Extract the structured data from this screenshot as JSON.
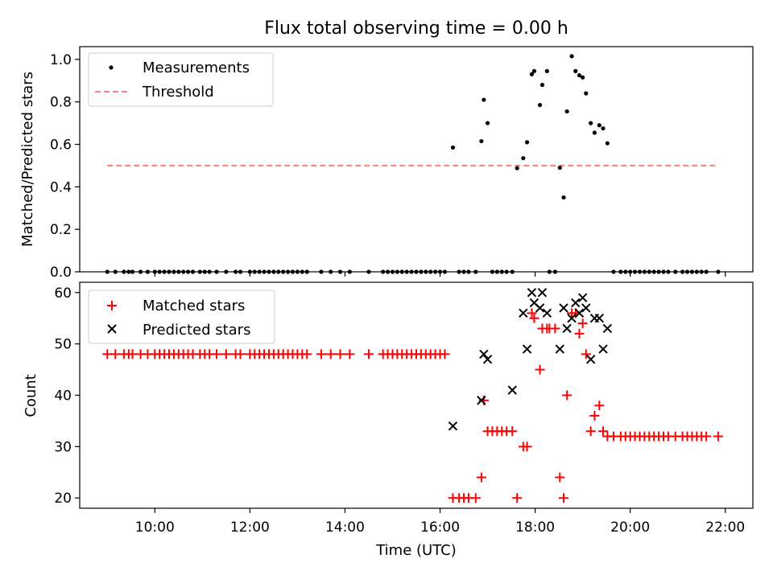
{
  "figure": {
    "title": "Flux total observing time = 0.00 h"
  },
  "chart_data": [
    {
      "type": "scatter",
      "title": "Flux total observing time = 0.00 h",
      "xlabel": "",
      "ylabel": "Matched/Predicted stars",
      "xlim_hours": [
        8.42,
        22.58
      ],
      "ylim": [
        0,
        1.06
      ],
      "yticks": [
        0.0,
        0.2,
        0.4,
        0.6,
        0.8,
        1.0
      ],
      "ytick_labels": [
        "0.0",
        "0.2",
        "0.4",
        "0.6",
        "0.8",
        "1.0"
      ],
      "grid": false,
      "legend": "upper-left",
      "series": [
        {
          "name": "Measurements",
          "kind": "points",
          "color": "#000000",
          "x_hours": [
            9.0,
            9.17,
            9.35,
            9.45,
            9.53,
            9.7,
            9.85,
            10.0,
            10.1,
            10.2,
            10.3,
            10.4,
            10.5,
            10.6,
            10.7,
            10.8,
            10.95,
            11.05,
            11.15,
            11.3,
            11.5,
            11.7,
            11.8,
            12.0,
            12.1,
            12.2,
            12.3,
            12.4,
            12.5,
            12.6,
            12.7,
            12.8,
            12.9,
            13.0,
            13.1,
            13.2,
            13.5,
            13.7,
            13.9,
            14.1,
            14.5,
            14.8,
            14.9,
            15.0,
            15.1,
            15.2,
            15.3,
            15.4,
            15.5,
            15.6,
            15.7,
            15.8,
            15.9,
            16.0,
            16.1,
            16.27,
            16.4,
            16.5,
            16.6,
            16.75,
            16.87,
            16.92,
            17.0,
            17.1,
            17.2,
            17.3,
            17.4,
            17.52,
            17.62,
            17.75,
            17.83,
            17.93,
            17.98,
            18.1,
            18.15,
            18.25,
            18.3,
            18.42,
            18.52,
            18.6,
            18.67,
            18.77,
            18.85,
            18.93,
            19.0,
            19.07,
            19.17,
            19.25,
            19.35,
            19.43,
            19.52,
            19.65,
            19.8,
            19.9,
            20.0,
            20.1,
            20.2,
            20.3,
            20.4,
            20.5,
            20.6,
            20.7,
            20.8,
            20.95,
            21.1,
            21.2,
            21.3,
            21.4,
            21.5,
            21.6,
            21.85
          ],
          "y": [
            0,
            0,
            0,
            0,
            0,
            0,
            0,
            0,
            0,
            0,
            0,
            0,
            0,
            0,
            0,
            0,
            0,
            0,
            0,
            0,
            0,
            0,
            0,
            0,
            0,
            0,
            0,
            0,
            0,
            0,
            0,
            0,
            0,
            0,
            0,
            0,
            0,
            0,
            0,
            0,
            0,
            0,
            0,
            0,
            0,
            0,
            0,
            0,
            0,
            0,
            0,
            0,
            0,
            0,
            0,
            0.585,
            0,
            0,
            0,
            0,
            0.615,
            0.81,
            0.7,
            0,
            0,
            0,
            0,
            0,
            0.488,
            0.535,
            0.61,
            0.93,
            0.945,
            0.785,
            0.88,
            0.945,
            0,
            0,
            0.49,
            0.35,
            0.755,
            1.015,
            0.945,
            0.925,
            0.915,
            0.84,
            0.7,
            0.655,
            0.69,
            0.675,
            0.605,
            0,
            0,
            0,
            0,
            0,
            0,
            0,
            0,
            0,
            0,
            0,
            0,
            0,
            0,
            0,
            0,
            0,
            0,
            0,
            0
          ]
        },
        {
          "name": "Threshold",
          "kind": "dashed-line",
          "color": "#ff7f7f",
          "x_hours": [
            9.0,
            21.85
          ],
          "y": [
            0.5,
            0.5
          ]
        }
      ]
    },
    {
      "type": "scatter",
      "xlabel": "Time (UTC)",
      "ylabel": "Count",
      "xlim_hours": [
        8.42,
        22.58
      ],
      "ylim": [
        18,
        62
      ],
      "yticks": [
        20,
        30,
        40,
        50,
        60
      ],
      "ytick_labels": [
        "20",
        "30",
        "40",
        "50",
        "60"
      ],
      "xticks_hours": [
        10,
        12,
        14,
        16,
        18,
        20,
        22
      ],
      "xtick_labels": [
        "10:00",
        "12:00",
        "14:00",
        "16:00",
        "18:00",
        "20:00",
        "22:00"
      ],
      "grid": false,
      "legend": "upper-left",
      "series": [
        {
          "name": "Matched stars",
          "kind": "plus",
          "color": "#ff0000",
          "x_hours": [
            9.0,
            9.17,
            9.35,
            9.45,
            9.53,
            9.7,
            9.85,
            10.0,
            10.1,
            10.2,
            10.3,
            10.4,
            10.5,
            10.6,
            10.7,
            10.8,
            10.95,
            11.05,
            11.15,
            11.3,
            11.5,
            11.7,
            11.8,
            12.0,
            12.1,
            12.2,
            12.3,
            12.4,
            12.5,
            12.6,
            12.7,
            12.8,
            12.9,
            13.0,
            13.1,
            13.2,
            13.5,
            13.7,
            13.9,
            14.1,
            14.5,
            14.8,
            14.9,
            15.0,
            15.1,
            15.2,
            15.3,
            15.4,
            15.5,
            15.6,
            15.7,
            15.8,
            15.9,
            16.0,
            16.1,
            16.27,
            16.4,
            16.5,
            16.6,
            16.75,
            16.87,
            16.92,
            17.0,
            17.1,
            17.2,
            17.3,
            17.4,
            17.52,
            17.62,
            17.75,
            17.83,
            17.93,
            17.98,
            18.1,
            18.15,
            18.25,
            18.3,
            18.42,
            18.52,
            18.6,
            18.67,
            18.77,
            18.85,
            18.93,
            19.0,
            19.07,
            19.17,
            19.25,
            19.35,
            19.43,
            19.52,
            19.65,
            19.8,
            19.9,
            20.0,
            20.1,
            20.2,
            20.3,
            20.4,
            20.5,
            20.6,
            20.7,
            20.8,
            20.95,
            21.1,
            21.2,
            21.3,
            21.4,
            21.5,
            21.6,
            21.85
          ],
          "y": [
            48,
            48,
            48,
            48,
            48,
            48,
            48,
            48,
            48,
            48,
            48,
            48,
            48,
            48,
            48,
            48,
            48,
            48,
            48,
            48,
            48,
            48,
            48,
            48,
            48,
            48,
            48,
            48,
            48,
            48,
            48,
            48,
            48,
            48,
            48,
            48,
            48,
            48,
            48,
            48,
            48,
            48,
            48,
            48,
            48,
            48,
            48,
            48,
            48,
            48,
            48,
            48,
            48,
            48,
            48,
            20,
            20,
            20,
            20,
            20,
            24,
            39,
            33,
            33,
            33,
            33,
            33,
            33,
            20,
            30,
            30,
            56,
            55,
            45,
            53,
            53,
            53,
            53,
            24,
            20,
            40,
            56,
            56,
            52,
            54,
            48,
            33,
            36,
            38,
            33,
            32,
            32,
            32,
            32,
            32,
            32,
            32,
            32,
            32,
            32,
            32,
            32,
            32,
            32,
            32,
            32,
            32,
            32,
            32,
            32,
            32
          ]
        },
        {
          "name": "Predicted stars",
          "kind": "x",
          "color": "#000000",
          "x_hours": [
            16.27,
            16.87,
            16.92,
            17.0,
            17.52,
            17.75,
            17.83,
            17.93,
            17.98,
            18.1,
            18.15,
            18.25,
            18.52,
            18.6,
            18.67,
            18.77,
            18.85,
            18.93,
            19.0,
            19.07,
            19.17,
            19.25,
            19.35,
            19.43,
            19.52
          ],
          "y": [
            34,
            39,
            48,
            47,
            41,
            56,
            49,
            60,
            58,
            57,
            60,
            56,
            49,
            57,
            53,
            55,
            58,
            56,
            59,
            57,
            47,
            55,
            55,
            49,
            53
          ]
        }
      ]
    }
  ]
}
